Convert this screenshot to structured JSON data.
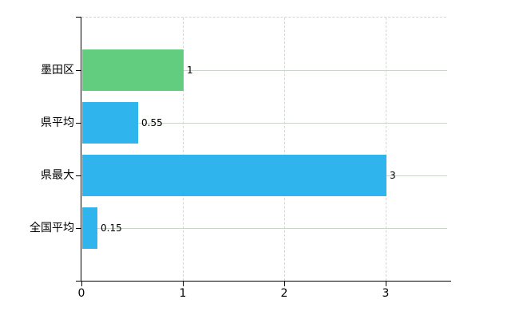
{
  "chart_data": {
    "type": "bar",
    "orientation": "horizontal",
    "title": "",
    "xlabel": "",
    "ylabel": "",
    "categories": [
      "墨田区",
      "県平均",
      "県最大",
      "全国平均"
    ],
    "values": [
      1,
      0.55,
      3,
      0.15
    ],
    "value_labels": [
      "1",
      "0.55",
      "3",
      "0.15"
    ],
    "bar_colors": [
      "#62cd7f",
      "#30b4ee",
      "#30b4ee",
      "#30b4ee"
    ],
    "xlim": [
      0,
      3.61
    ],
    "x_ticks": [
      0,
      1,
      2,
      3
    ],
    "x_tick_labels": [
      "0",
      "1",
      "2",
      "3"
    ],
    "grid": true,
    "legend": false
  },
  "colors": {
    "bar_green": "#62cd7f",
    "bar_blue": "#30b4ee",
    "axis": "#000000",
    "grid_vertical": "#d7d3d7",
    "grid_horizontal": "#ccd4cc",
    "text": "#000000",
    "background": "#ffffff"
  }
}
